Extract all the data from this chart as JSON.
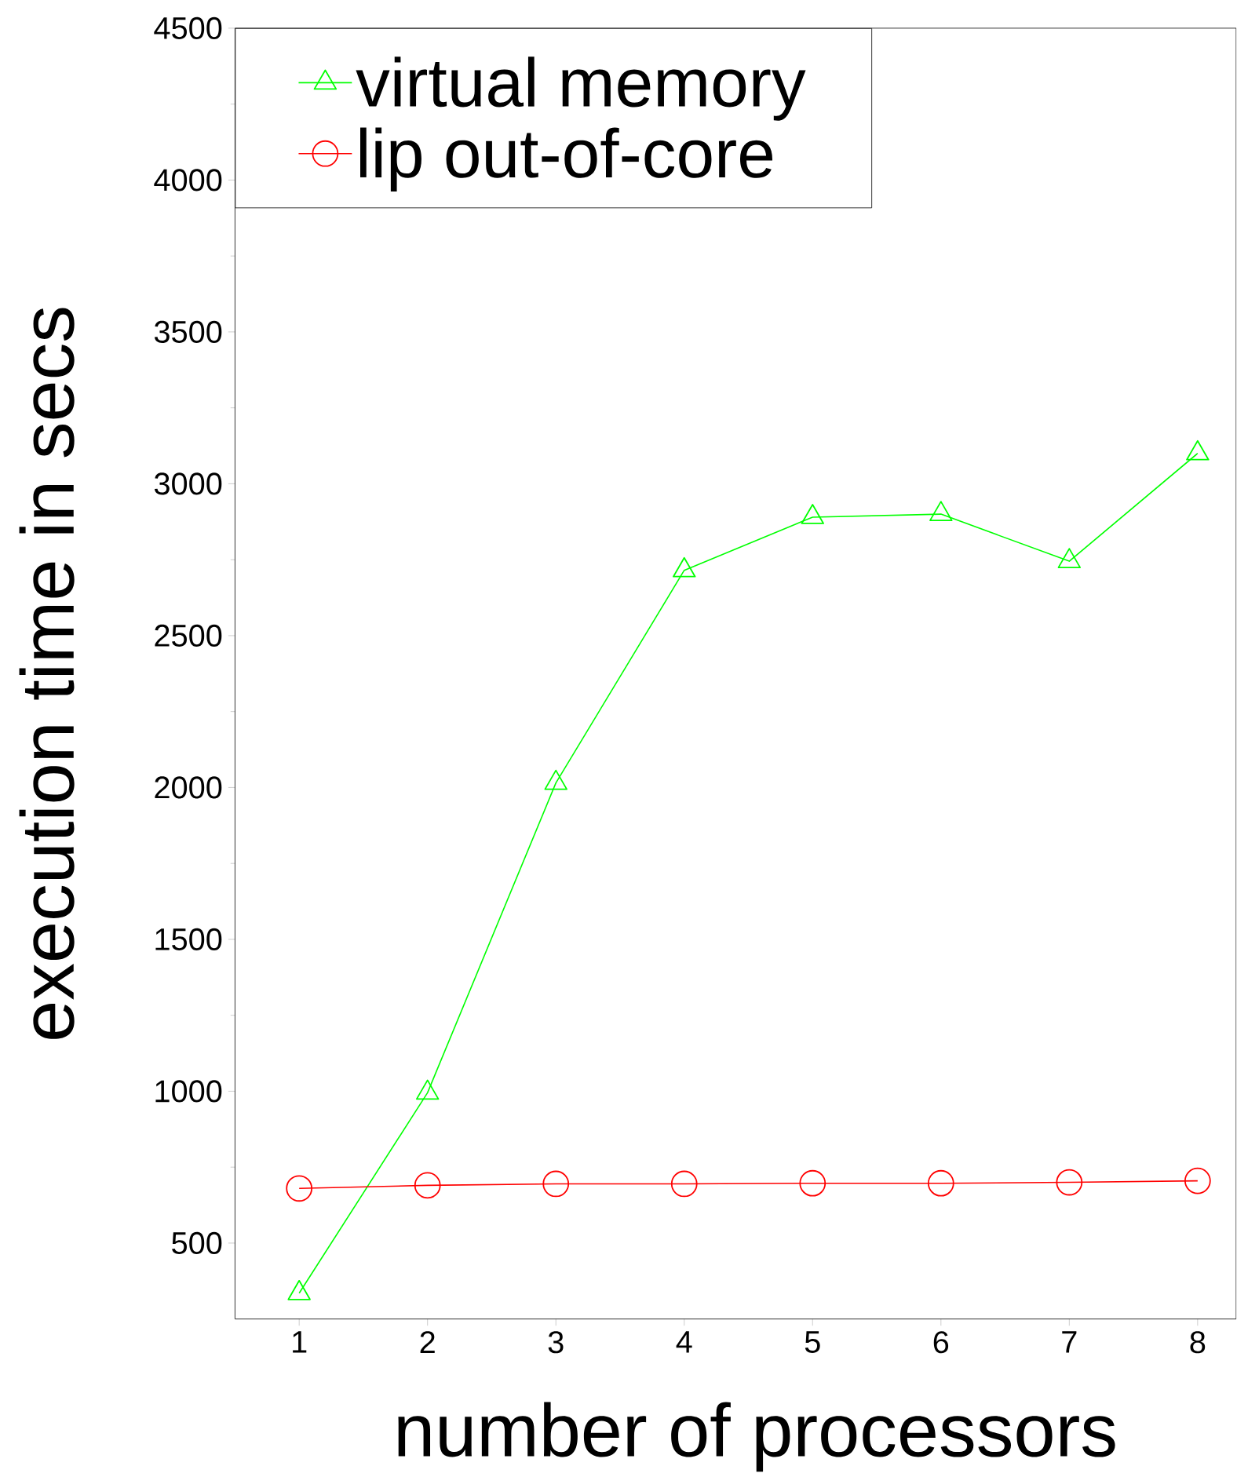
{
  "chart_data": {
    "type": "line",
    "xlabel": "number of processors",
    "ylabel": "execution time in secs",
    "x": [
      1,
      2,
      3,
      4,
      5,
      6,
      7,
      8
    ],
    "series": [
      {
        "name": "virtual memory",
        "color": "#00ff00",
        "marker": "triangle",
        "values": [
          335,
          995,
          2015,
          2715,
          2890,
          2900,
          2745,
          3100
        ]
      },
      {
        "name": "lip out-of-core",
        "color": "#ff0000",
        "marker": "circle",
        "values": [
          680,
          690,
          695,
          695,
          697,
          697,
          700,
          705
        ]
      }
    ],
    "xlim": [
      0.5,
      8.3
    ],
    "ylim": [
      250,
      4500
    ],
    "xticks": [
      1,
      2,
      3,
      4,
      5,
      6,
      7,
      8
    ],
    "yticks": [
      500,
      1000,
      1500,
      2000,
      2500,
      3000,
      3500,
      4000,
      4500
    ],
    "legend": "top left",
    "grid": false,
    "line_style": "solid"
  }
}
